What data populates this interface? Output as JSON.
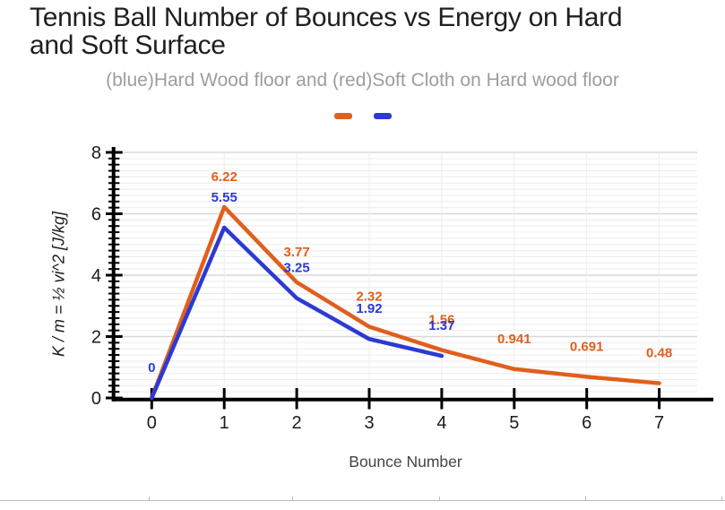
{
  "chart": {
    "title": "Tennis Ball Number of Bounces vs Energy on Hard and Soft Surface",
    "subtitle": "(blue)Hard Wood floor and (red)Soft Cloth on Hard wood floor",
    "xlabel": "Bounce Number",
    "ylabel": "K / m = ½ vi^2 [J/kg]"
  },
  "chart_data": {
    "type": "line",
    "title": "Tennis Ball Number of Bounces vs Energy on Hard and Soft Surface",
    "subtitle": "(blue)Hard Wood floor and (red)Soft Cloth on Hard wood floor",
    "xlabel": "Bounce Number",
    "ylabel": "K / m = ½ vi^2 [J/kg]",
    "x": [
      0,
      1,
      2,
      3,
      4,
      5,
      6,
      7
    ],
    "series": [
      {
        "name": "(red) Soft Cloth on Hard wood floor",
        "color": "#E05F1D",
        "values": [
          0,
          6.22,
          3.77,
          2.32,
          1.56,
          0.941,
          0.691,
          0.48
        ],
        "labels": [
          "",
          "6.22",
          "3.77",
          "2.32",
          "1.56",
          "0.941",
          "0.691",
          "0.48"
        ]
      },
      {
        "name": "(blue) Hard Wood floor",
        "color": "#2C3AD4",
        "values": [
          0,
          5.55,
          3.25,
          1.92,
          1.37
        ],
        "labels": [
          "0",
          "5.55",
          "3.25",
          "1.92",
          "1.37"
        ]
      }
    ],
    "xlim": [
      -0.55,
      7.5
    ],
    "ylim": [
      0,
      8
    ],
    "xticks": [
      0,
      1,
      2,
      3,
      4,
      5,
      6,
      7
    ],
    "yticks": [
      0,
      2,
      4,
      6,
      8
    ],
    "minor_tick_step": 0.2,
    "grid": true,
    "legend_position": "top"
  }
}
